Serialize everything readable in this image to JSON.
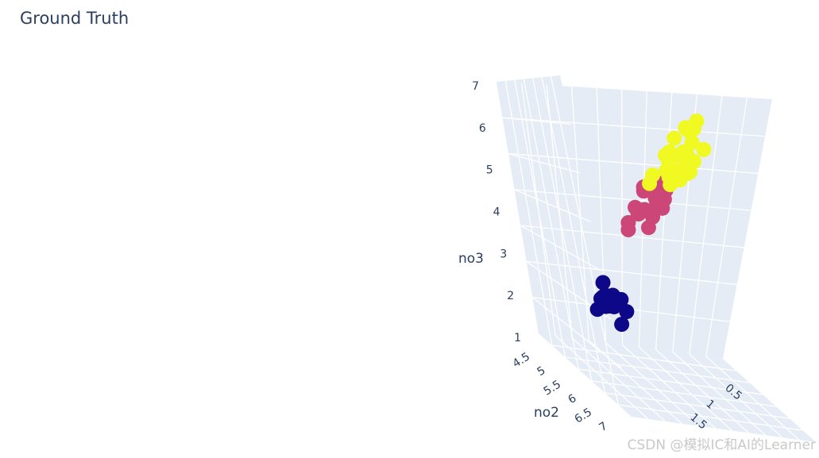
{
  "chart_data": {
    "type": "scatter",
    "title": "Ground Truth",
    "axes": {
      "x": {
        "label": "no2",
        "ticks": [
          "4.5",
          "5",
          "5.5",
          "6",
          "6.5",
          "7"
        ]
      },
      "y": {
        "label": "",
        "ticks": [
          "0.5",
          "1",
          "1.5"
        ]
      },
      "z": {
        "label": "no3",
        "ticks": [
          "1",
          "2",
          "3",
          "4",
          "5",
          "6",
          "7"
        ],
        "range": [
          1,
          7
        ]
      }
    },
    "grid": true,
    "legend": "none",
    "colors": {
      "cluster_1": "#0d0887",
      "cluster_2": "#cc4778",
      "cluster_3": "#f0f921",
      "scene_background": "#e5ecf6",
      "grid_line": "#ffffff",
      "text": "#2a3f5f"
    },
    "series": [
      {
        "color_key": "cluster_1",
        "points": [
          [
            5.0,
            0.2,
            1.4
          ],
          [
            4.9,
            0.2,
            1.4
          ],
          [
            4.7,
            0.2,
            1.3
          ],
          [
            4.6,
            0.2,
            1.5
          ],
          [
            5.0,
            0.2,
            1.4
          ],
          [
            5.4,
            0.4,
            1.7
          ],
          [
            4.6,
            0.3,
            1.4
          ],
          [
            5.0,
            0.2,
            1.5
          ],
          [
            4.4,
            0.2,
            1.4
          ],
          [
            4.9,
            0.1,
            1.5
          ],
          [
            5.4,
            0.2,
            1.5
          ],
          [
            4.8,
            0.2,
            1.6
          ],
          [
            4.8,
            0.1,
            1.4
          ],
          [
            4.3,
            0.1,
            1.1
          ],
          [
            5.8,
            0.2,
            1.2
          ],
          [
            5.7,
            0.4,
            1.5
          ],
          [
            5.1,
            0.3,
            1.7
          ],
          [
            5.1,
            0.2,
            1.6
          ],
          [
            4.8,
            0.2,
            1.9
          ],
          [
            5.0,
            0.4,
            1.6
          ]
        ]
      },
      {
        "color_key": "cluster_2",
        "points": [
          [
            7.0,
            1.4,
            4.7
          ],
          [
            6.4,
            1.5,
            4.5
          ],
          [
            6.9,
            1.5,
            4.9
          ],
          [
            5.5,
            1.3,
            4.0
          ],
          [
            6.5,
            1.5,
            4.6
          ],
          [
            5.7,
            1.3,
            4.5
          ],
          [
            6.3,
            1.6,
            4.7
          ],
          [
            4.9,
            1.0,
            3.3
          ],
          [
            6.6,
            1.3,
            4.6
          ],
          [
            5.2,
            1.4,
            3.9
          ],
          [
            5.0,
            1.0,
            3.5
          ],
          [
            5.9,
            1.5,
            4.2
          ],
          [
            6.0,
            1.0,
            4.0
          ],
          [
            6.1,
            1.4,
            4.7
          ],
          [
            5.6,
            1.3,
            3.6
          ],
          [
            6.7,
            1.4,
            4.4
          ],
          [
            5.6,
            1.5,
            4.5
          ],
          [
            5.8,
            1.0,
            4.1
          ],
          [
            6.2,
            1.5,
            4.5
          ],
          [
            5.6,
            1.1,
            3.9
          ],
          [
            5.9,
            1.8,
            4.8
          ],
          [
            6.1,
            1.3,
            4.0
          ],
          [
            6.3,
            1.5,
            4.9
          ],
          [
            6.1,
            1.2,
            4.7
          ],
          [
            6.4,
            1.3,
            4.3
          ]
        ]
      },
      {
        "color_key": "cluster_3",
        "points": [
          [
            6.3,
            2.5,
            6.0
          ],
          [
            5.8,
            1.9,
            5.1
          ],
          [
            7.1,
            2.1,
            5.9
          ],
          [
            6.3,
            1.8,
            5.6
          ],
          [
            6.5,
            2.2,
            5.8
          ],
          [
            7.6,
            2.1,
            6.6
          ],
          [
            4.9,
            1.7,
            4.5
          ],
          [
            7.3,
            1.8,
            6.3
          ],
          [
            6.7,
            1.8,
            5.8
          ],
          [
            7.2,
            2.5,
            6.1
          ],
          [
            6.5,
            2.0,
            5.1
          ],
          [
            6.4,
            1.9,
            5.3
          ],
          [
            6.8,
            2.1,
            5.5
          ],
          [
            5.7,
            2.0,
            5.0
          ],
          [
            5.8,
            2.4,
            5.1
          ],
          [
            6.4,
            2.3,
            5.3
          ],
          [
            6.5,
            1.8,
            5.5
          ],
          [
            7.7,
            2.2,
            6.7
          ],
          [
            7.7,
            2.3,
            6.9
          ],
          [
            6.0,
            1.5,
            5.0
          ],
          [
            6.9,
            2.3,
            5.7
          ],
          [
            5.6,
            2.0,
            4.9
          ],
          [
            7.7,
            2.0,
            6.7
          ],
          [
            6.3,
            1.8,
            4.9
          ],
          [
            6.7,
            2.1,
            5.7
          ]
        ]
      }
    ]
  },
  "watermark": "CSDN @模拟IC和AI的Learner"
}
